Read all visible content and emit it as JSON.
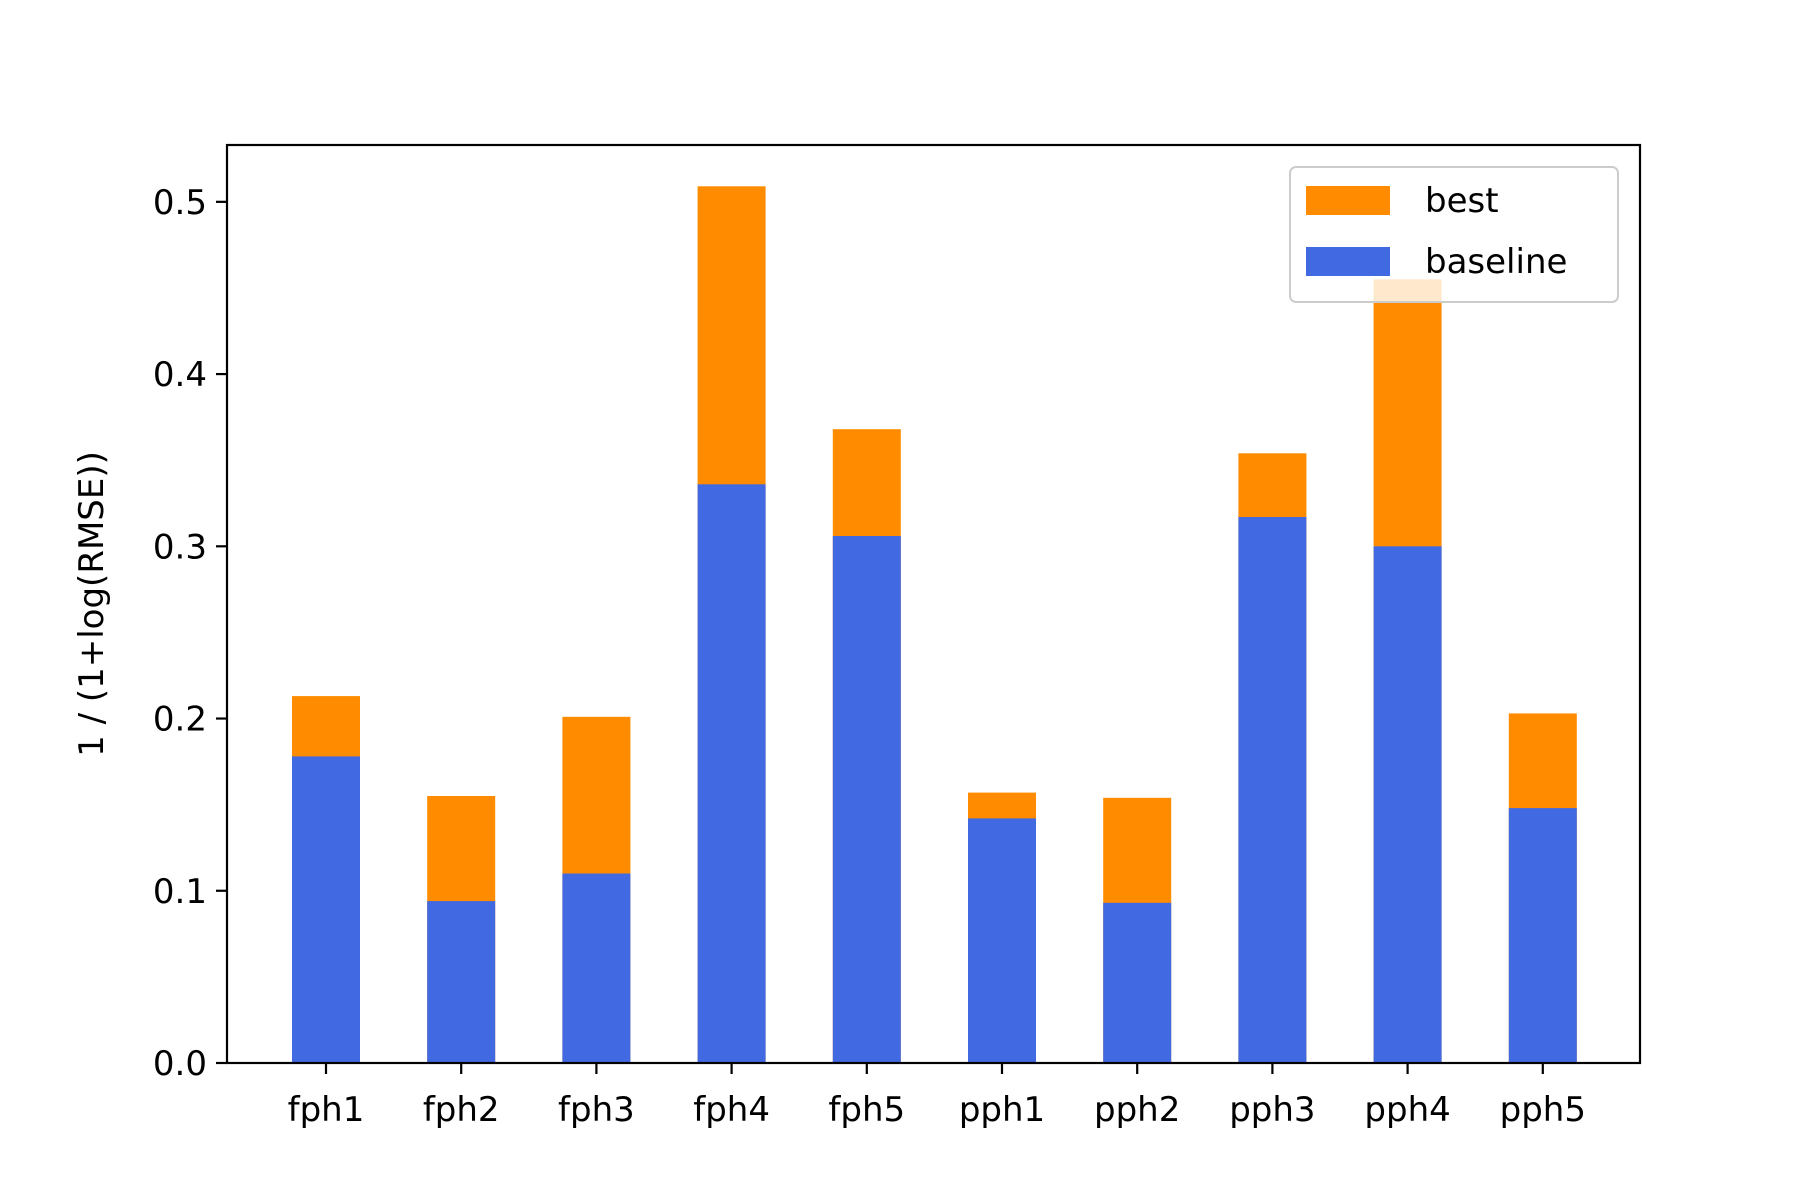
{
  "chart_data": {
    "type": "bar",
    "stacked": false,
    "overlay": true,
    "title": "",
    "xlabel": "",
    "ylabel": "1 / (1+log(RMSE))",
    "ylim": [
      0,
      0.533
    ],
    "yticks": [
      "0.0",
      "0.1",
      "0.2",
      "0.3",
      "0.4",
      "0.5"
    ],
    "categories": [
      "fph1",
      "fph2",
      "fph3",
      "fph4",
      "fph5",
      "pph1",
      "pph2",
      "pph3",
      "pph4",
      "pph5"
    ],
    "series": [
      {
        "name": "best",
        "color": "#ff8c00",
        "values": [
          0.213,
          0.155,
          0.201,
          0.509,
          0.368,
          0.157,
          0.154,
          0.354,
          0.455,
          0.203
        ]
      },
      {
        "name": "baseline",
        "color": "#4169e1",
        "values": [
          0.178,
          0.094,
          0.11,
          0.336,
          0.306,
          0.142,
          0.093,
          0.317,
          0.3,
          0.148
        ]
      }
    ],
    "legend": {
      "position": "top-right",
      "entries": [
        "best",
        "baseline"
      ]
    },
    "grid": false
  }
}
